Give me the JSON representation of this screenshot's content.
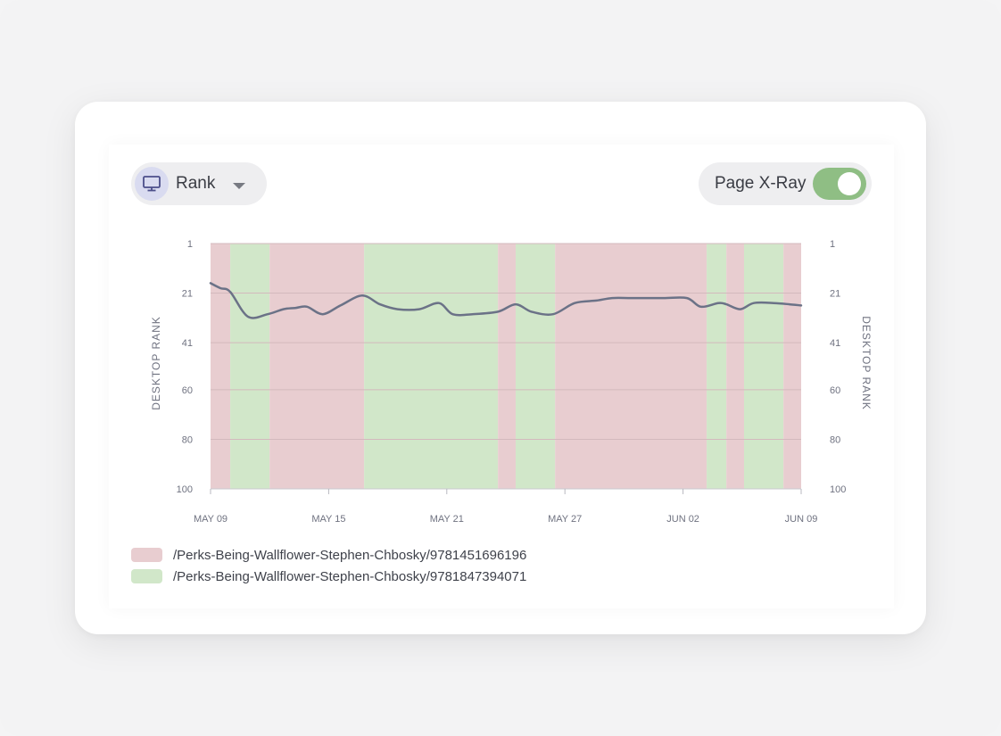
{
  "controls": {
    "metric_label": "Rank",
    "metric_icon": "monitor-icon",
    "xray_label": "Page X-Ray",
    "xray_enabled": true
  },
  "colors": {
    "red_band": "#e8cdd0",
    "green_band": "#d1e7c9",
    "line": "#6b7287",
    "line_accent": "#7c5d92",
    "grid": "#d3b9bd",
    "toggle": "#8fbe84"
  },
  "legend": [
    {
      "label": "/Perks-Being-Wallflower-Stephen-Chbosky/9781451696196",
      "color": "#e8cdd0"
    },
    {
      "label": "/Perks-Being-Wallflower-Stephen-Chbosky/9781847394071",
      "color": "#d1e7c9"
    }
  ],
  "chart_data": {
    "type": "line",
    "title": "",
    "ylabel_left": "DESKTOP RANK",
    "ylabel_right": "DESKTOP RANK",
    "y_ticks": [
      1,
      21,
      41,
      60,
      80,
      100
    ],
    "ylim": [
      1,
      100
    ],
    "y_inverted": true,
    "x_start": "2023-05-09",
    "x_end": "2023-06-09",
    "x_ticks": [
      {
        "label": "MAY 09",
        "day": 0
      },
      {
        "label": "MAY 15",
        "day": 6
      },
      {
        "label": "MAY 21",
        "day": 12
      },
      {
        "label": "MAY 27",
        "day": 18
      },
      {
        "label": "JUN 02",
        "day": 24
      },
      {
        "label": "JUN 09",
        "day": 30
      }
    ],
    "bands": [
      {
        "from": 0,
        "to": 1,
        "series": 0
      },
      {
        "from": 1,
        "to": 3,
        "series": 1
      },
      {
        "from": 3,
        "to": 7.8,
        "series": 0
      },
      {
        "from": 7.8,
        "to": 14.6,
        "series": 1
      },
      {
        "from": 14.6,
        "to": 15.5,
        "series": 0
      },
      {
        "from": 15.5,
        "to": 17.5,
        "series": 1
      },
      {
        "from": 17.5,
        "to": 25.2,
        "series": 0
      },
      {
        "from": 25.2,
        "to": 26.2,
        "series": 1
      },
      {
        "from": 26.2,
        "to": 27.1,
        "series": 0
      },
      {
        "from": 27.1,
        "to": 29.1,
        "series": 1
      },
      {
        "from": 29.1,
        "to": 30,
        "series": 0
      }
    ],
    "series": [
      {
        "values": [
          [
            0,
            17
          ],
          [
            0.5,
            19
          ],
          [
            1,
            20.5
          ],
          [
            1.9,
            30.5
          ],
          [
            2.9,
            29.5
          ],
          [
            3.7,
            27.5
          ],
          [
            4.3,
            27
          ],
          [
            4.9,
            26.5
          ],
          [
            5.7,
            29.5
          ],
          [
            6.6,
            26
          ],
          [
            7.7,
            22
          ],
          [
            8.6,
            25.5
          ],
          [
            9.5,
            27.5
          ],
          [
            10.6,
            27.5
          ],
          [
            11.6,
            25
          ],
          [
            12.3,
            29.5
          ],
          [
            13.3,
            29.5
          ],
          [
            14.6,
            28.5
          ],
          [
            15.5,
            25.5
          ],
          [
            16.3,
            28.5
          ],
          [
            17.4,
            29.5
          ],
          [
            18.5,
            25
          ],
          [
            19.6,
            24
          ],
          [
            20.4,
            23
          ],
          [
            21.4,
            23
          ],
          [
            23,
            23
          ],
          [
            24.2,
            23
          ],
          [
            24.9,
            26.5
          ],
          [
            25.8,
            25
          ],
          [
            26.2,
            25.5
          ],
          [
            26.9,
            27.5
          ],
          [
            27.6,
            25
          ],
          [
            28.6,
            25
          ],
          [
            29.4,
            25.5
          ],
          [
            30,
            26
          ]
        ]
      }
    ]
  }
}
